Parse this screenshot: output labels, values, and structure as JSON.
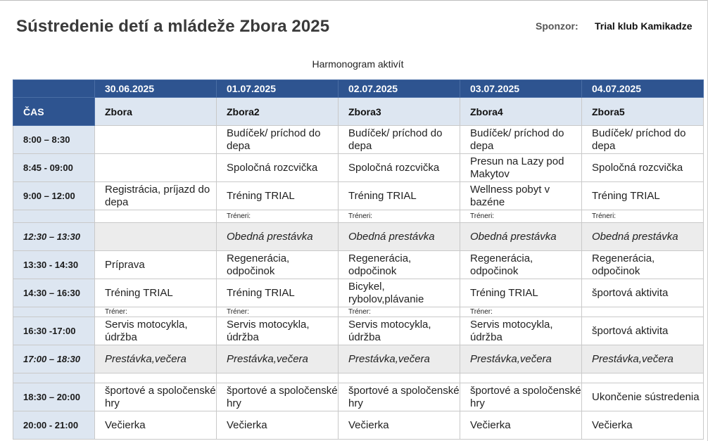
{
  "header": {
    "title": "Sústredenie detí a mládeže Zbora 2025",
    "sponsor_label": "Sponzor:",
    "sponsor_value": "Trial klub Kamikadze",
    "subtitle": "Harmonogram aktivít"
  },
  "table": {
    "time_header": "ČAS",
    "columns": [
      {
        "date": "30.06.2025",
        "team": "Zbora"
      },
      {
        "date": "01.07.2025",
        "team": "Zbora2"
      },
      {
        "date": "02.07.2025",
        "team": "Zbora3"
      },
      {
        "date": "03.07.2025",
        "team": "Zbora4"
      },
      {
        "date": "04.07.2025",
        "team": "Zbora5"
      }
    ],
    "rows": [
      {
        "time": "8:00 – 8:30",
        "cells": [
          "",
          "Budíček/ príchod do depa",
          "Budíček/ príchod do depa",
          "Budíček/ príchod do depa",
          "Budíček/ príchod do depa"
        ]
      },
      {
        "time": "8:45 - 09:00",
        "cells": [
          "",
          "Spoločná rozcvička",
          "Spoločná rozcvička",
          "Presun na Lazy pod Makytov",
          "Spoločná rozcvička"
        ]
      },
      {
        "time": "9:00 – 12:00",
        "cells": [
          "Registrácia, príjazd do depa",
          "Tréning TRIAL",
          "Tréning TRIAL",
          "Wellness pobyt v bazéne",
          "Tréning TRIAL"
        ]
      },
      {
        "time": "",
        "note": true,
        "cells": [
          "",
          "Tréneri:",
          "Tréneri:",
          "Tréneri:",
          "Tréneri:"
        ]
      },
      {
        "time": "12:30 – 13:30",
        "gray": true,
        "cells": [
          "",
          "Obedná prestávka",
          "Obedná prestávka",
          "Obedná prestávka",
          "Obedná prestávka"
        ]
      },
      {
        "time": "13:30 - 14:30",
        "cells": [
          "Príprava",
          "Regenerácia, odpočinok",
          "Regenerácia, odpočinok",
          "Regenerácia, odpočinok",
          "Regenerácia, odpočinok"
        ]
      },
      {
        "time": "14:30 – 16:30",
        "cells": [
          "Tréning TRIAL",
          "Tréning TRIAL",
          "Bicykel, rybolov,plávanie",
          "Tréning TRIAL",
          "športová aktivita"
        ]
      },
      {
        "time": "",
        "note": true,
        "cells": [
          "Tréner:",
          "Tréner:",
          "Tréner:",
          "Tréner:",
          ""
        ]
      },
      {
        "time": "16:30 -17:00",
        "cells": [
          "Servis motocykla, údržba",
          "Servis motocykla, údržba",
          "Servis motocykla, údržba",
          "Servis motocykla, údržba",
          "športová aktivita"
        ]
      },
      {
        "time": "17:00 – 18:30",
        "gray": true,
        "cells": [
          "Prestávka,večera",
          "Prestávka,večera",
          "Prestávka,večera",
          "Prestávka,večera",
          "Prestávka,večera"
        ]
      },
      {
        "time": "",
        "spacer": true,
        "cells": [
          "",
          "",
          "",
          "",
          ""
        ]
      },
      {
        "time": "18:30 – 20:00",
        "cells": [
          "športové a spoločenské hry",
          "športové a spoločenské hry",
          "športové a spoločenské hry",
          "športové a spoločenské hry",
          "Ukončenie sústredenia"
        ]
      },
      {
        "time": "20:00 - 21:00",
        "cells": [
          "Večierka",
          "Večierka",
          "Večierka",
          "Večierka",
          "Večierka"
        ]
      }
    ]
  }
}
